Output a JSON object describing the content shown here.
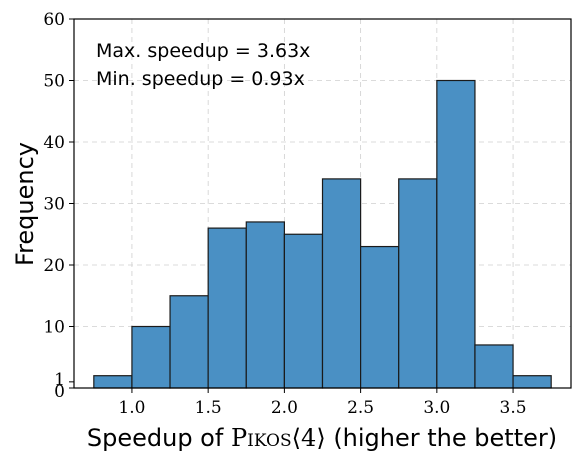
{
  "chart_data": {
    "type": "histogram",
    "xlabel_parts": {
      "before": "Speedup of ",
      "name": "Pikos",
      "open": "⟨",
      "param": "4",
      "close": "⟩",
      "after": " (higher the better)"
    },
    "ylabel": "Frequency",
    "annotations": [
      "Max. speedup = 3.63x",
      "Min. speedup = 0.93x"
    ],
    "xlim": [
      0.62,
      3.88
    ],
    "ylim": [
      0,
      60
    ],
    "xticks": [
      1.0,
      1.5,
      2.0,
      2.5,
      3.0,
      3.5
    ],
    "xtick_labels": [
      "1.0",
      "1.5",
      "2.0",
      "2.5",
      "3.0",
      "3.5"
    ],
    "yticks": [
      0,
      1,
      10,
      20,
      30,
      40,
      50,
      60
    ],
    "ytick_labels": [
      "0",
      "1",
      "10",
      "20",
      "30",
      "40",
      "50",
      "60"
    ],
    "grid": true,
    "bins": [
      {
        "x0": 0.75,
        "x1": 1.0,
        "count": 2
      },
      {
        "x0": 1.0,
        "x1": 1.25,
        "count": 10
      },
      {
        "x0": 1.25,
        "x1": 1.5,
        "count": 15
      },
      {
        "x0": 1.5,
        "x1": 1.75,
        "count": 26
      },
      {
        "x0": 1.75,
        "x1": 2.0,
        "count": 27
      },
      {
        "x0": 2.0,
        "x1": 2.25,
        "count": 25
      },
      {
        "x0": 2.25,
        "x1": 2.5,
        "count": 34
      },
      {
        "x0": 2.5,
        "x1": 2.75,
        "count": 23
      },
      {
        "x0": 2.75,
        "x1": 3.0,
        "count": 34
      },
      {
        "x0": 3.0,
        "x1": 3.25,
        "count": 50
      },
      {
        "x0": 3.25,
        "x1": 3.5,
        "count": 7
      },
      {
        "x0": 3.5,
        "x1": 3.75,
        "count": 2
      }
    ],
    "colors": {
      "bar": "#4a90c4",
      "edge": "#1a1a1a"
    }
  }
}
